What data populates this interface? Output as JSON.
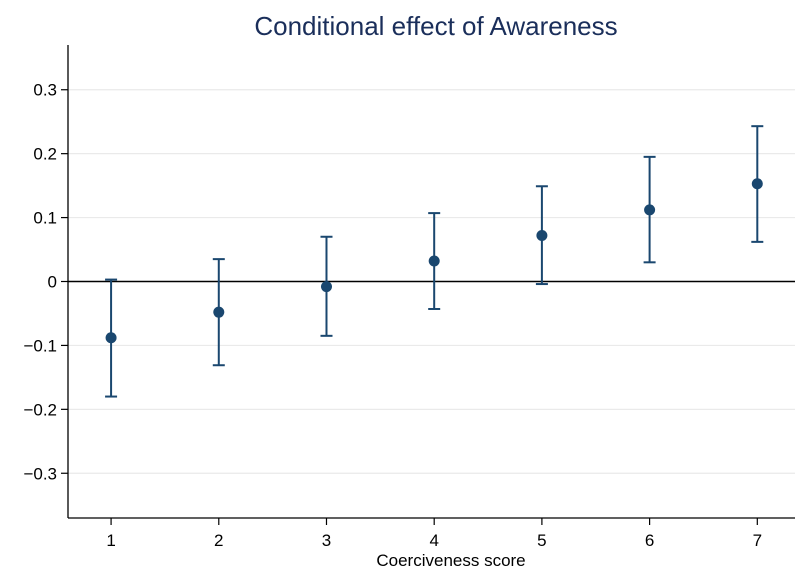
{
  "chart_data": {
    "type": "scatter",
    "title": "Conditional effect of Awareness",
    "xlabel": "Coerciveness score",
    "ylabel": "",
    "x_ticks": [
      "1",
      "2",
      "3",
      "4",
      "5",
      "6",
      "7"
    ],
    "y_ticks": [
      "0.3",
      "0.2",
      "0.1",
      "0",
      "−0.1",
      "−0.2",
      "−0.3"
    ],
    "ylim": [
      -0.37,
      0.37
    ],
    "xlim": [
      0.6,
      7.35
    ],
    "grid": true,
    "reference_line_y": 0,
    "colors": {
      "marker": "#1a476f",
      "title": "#1a2e5a",
      "grid": "#eaeaea",
      "axis": "#000000"
    },
    "points": [
      {
        "x": 1,
        "y": -0.088,
        "lo": -0.18,
        "hi": 0.003
      },
      {
        "x": 2,
        "y": -0.048,
        "lo": -0.131,
        "hi": 0.035
      },
      {
        "x": 3,
        "y": -0.008,
        "lo": -0.085,
        "hi": 0.07
      },
      {
        "x": 4,
        "y": 0.032,
        "lo": -0.043,
        "hi": 0.107
      },
      {
        "x": 5,
        "y": 0.072,
        "lo": -0.004,
        "hi": 0.149
      },
      {
        "x": 6,
        "y": 0.112,
        "lo": 0.03,
        "hi": 0.195
      },
      {
        "x": 7,
        "y": 0.153,
        "lo": 0.062,
        "hi": 0.243
      }
    ]
  }
}
